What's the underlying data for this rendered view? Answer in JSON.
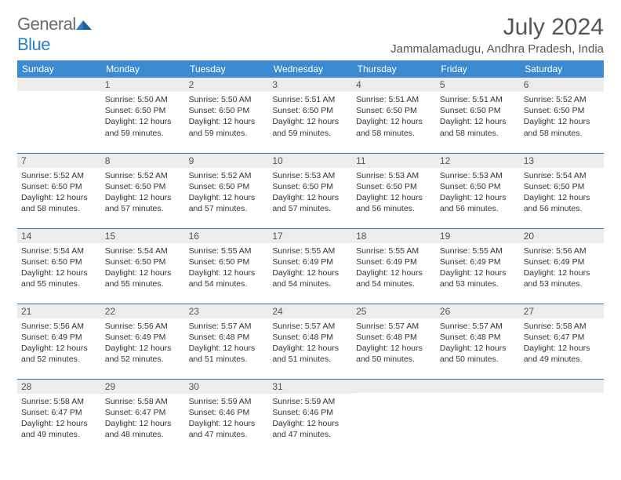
{
  "logo": {
    "text1": "General",
    "text2": "Blue"
  },
  "title": "July 2024",
  "location": "Jammalamadugu, Andhra Pradesh, India",
  "colors": {
    "header_bg": "#3b8bd1",
    "row_divider": "#2f77b8",
    "daynum_bg": "#ececec",
    "logo_gray": "#6b6b6b",
    "logo_blue": "#2a7ecb"
  },
  "daynames": [
    "Sunday",
    "Monday",
    "Tuesday",
    "Wednesday",
    "Thursday",
    "Friday",
    "Saturday"
  ],
  "weeks": [
    [
      {
        "n": "",
        "sr": "",
        "ss": "",
        "dl": ""
      },
      {
        "n": "1",
        "sr": "5:50 AM",
        "ss": "6:50 PM",
        "dl": "12 hours and 59 minutes."
      },
      {
        "n": "2",
        "sr": "5:50 AM",
        "ss": "6:50 PM",
        "dl": "12 hours and 59 minutes."
      },
      {
        "n": "3",
        "sr": "5:51 AM",
        "ss": "6:50 PM",
        "dl": "12 hours and 59 minutes."
      },
      {
        "n": "4",
        "sr": "5:51 AM",
        "ss": "6:50 PM",
        "dl": "12 hours and 58 minutes."
      },
      {
        "n": "5",
        "sr": "5:51 AM",
        "ss": "6:50 PM",
        "dl": "12 hours and 58 minutes."
      },
      {
        "n": "6",
        "sr": "5:52 AM",
        "ss": "6:50 PM",
        "dl": "12 hours and 58 minutes."
      }
    ],
    [
      {
        "n": "7",
        "sr": "5:52 AM",
        "ss": "6:50 PM",
        "dl": "12 hours and 58 minutes."
      },
      {
        "n": "8",
        "sr": "5:52 AM",
        "ss": "6:50 PM",
        "dl": "12 hours and 57 minutes."
      },
      {
        "n": "9",
        "sr": "5:52 AM",
        "ss": "6:50 PM",
        "dl": "12 hours and 57 minutes."
      },
      {
        "n": "10",
        "sr": "5:53 AM",
        "ss": "6:50 PM",
        "dl": "12 hours and 57 minutes."
      },
      {
        "n": "11",
        "sr": "5:53 AM",
        "ss": "6:50 PM",
        "dl": "12 hours and 56 minutes."
      },
      {
        "n": "12",
        "sr": "5:53 AM",
        "ss": "6:50 PM",
        "dl": "12 hours and 56 minutes."
      },
      {
        "n": "13",
        "sr": "5:54 AM",
        "ss": "6:50 PM",
        "dl": "12 hours and 56 minutes."
      }
    ],
    [
      {
        "n": "14",
        "sr": "5:54 AM",
        "ss": "6:50 PM",
        "dl": "12 hours and 55 minutes."
      },
      {
        "n": "15",
        "sr": "5:54 AM",
        "ss": "6:50 PM",
        "dl": "12 hours and 55 minutes."
      },
      {
        "n": "16",
        "sr": "5:55 AM",
        "ss": "6:50 PM",
        "dl": "12 hours and 54 minutes."
      },
      {
        "n": "17",
        "sr": "5:55 AM",
        "ss": "6:49 PM",
        "dl": "12 hours and 54 minutes."
      },
      {
        "n": "18",
        "sr": "5:55 AM",
        "ss": "6:49 PM",
        "dl": "12 hours and 54 minutes."
      },
      {
        "n": "19",
        "sr": "5:55 AM",
        "ss": "6:49 PM",
        "dl": "12 hours and 53 minutes."
      },
      {
        "n": "20",
        "sr": "5:56 AM",
        "ss": "6:49 PM",
        "dl": "12 hours and 53 minutes."
      }
    ],
    [
      {
        "n": "21",
        "sr": "5:56 AM",
        "ss": "6:49 PM",
        "dl": "12 hours and 52 minutes."
      },
      {
        "n": "22",
        "sr": "5:56 AM",
        "ss": "6:49 PM",
        "dl": "12 hours and 52 minutes."
      },
      {
        "n": "23",
        "sr": "5:57 AM",
        "ss": "6:48 PM",
        "dl": "12 hours and 51 minutes."
      },
      {
        "n": "24",
        "sr": "5:57 AM",
        "ss": "6:48 PM",
        "dl": "12 hours and 51 minutes."
      },
      {
        "n": "25",
        "sr": "5:57 AM",
        "ss": "6:48 PM",
        "dl": "12 hours and 50 minutes."
      },
      {
        "n": "26",
        "sr": "5:57 AM",
        "ss": "6:48 PM",
        "dl": "12 hours and 50 minutes."
      },
      {
        "n": "27",
        "sr": "5:58 AM",
        "ss": "6:47 PM",
        "dl": "12 hours and 49 minutes."
      }
    ],
    [
      {
        "n": "28",
        "sr": "5:58 AM",
        "ss": "6:47 PM",
        "dl": "12 hours and 49 minutes."
      },
      {
        "n": "29",
        "sr": "5:58 AM",
        "ss": "6:47 PM",
        "dl": "12 hours and 48 minutes."
      },
      {
        "n": "30",
        "sr": "5:59 AM",
        "ss": "6:46 PM",
        "dl": "12 hours and 47 minutes."
      },
      {
        "n": "31",
        "sr": "5:59 AM",
        "ss": "6:46 PM",
        "dl": "12 hours and 47 minutes."
      },
      {
        "n": "",
        "sr": "",
        "ss": "",
        "dl": ""
      },
      {
        "n": "",
        "sr": "",
        "ss": "",
        "dl": ""
      },
      {
        "n": "",
        "sr": "",
        "ss": "",
        "dl": ""
      }
    ]
  ],
  "labels": {
    "sunrise": "Sunrise:",
    "sunset": "Sunset:",
    "daylight": "Daylight:"
  }
}
